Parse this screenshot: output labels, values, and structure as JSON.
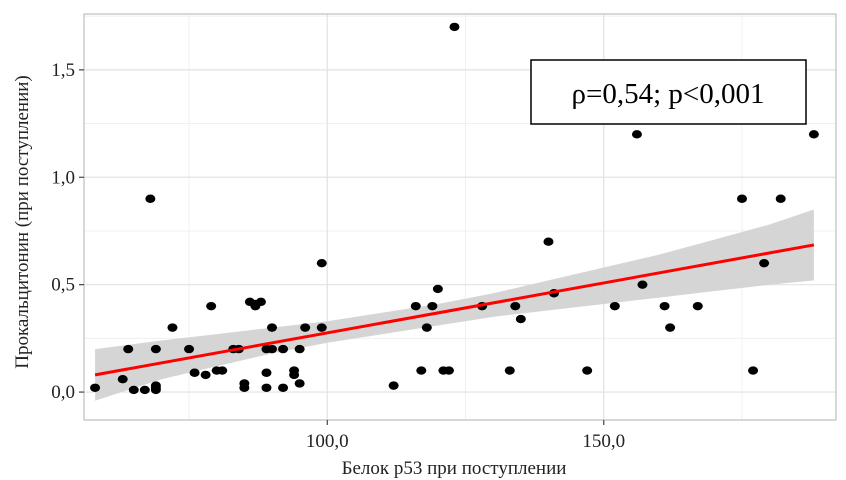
{
  "chart_data": {
    "type": "scatter",
    "xlabel": "Белок р53 при поступлении",
    "ylabel": "Прокальцитонин (при поступлении)",
    "xlim": [
      56,
      192
    ],
    "ylim": [
      -0.13,
      1.76
    ],
    "x_ticks": [
      {
        "value": 100,
        "label": "100,0"
      },
      {
        "value": 150,
        "label": "150,0"
      }
    ],
    "y_ticks": [
      {
        "value": 0.0,
        "label": "0,0"
      },
      {
        "value": 0.5,
        "label": "0,5"
      },
      {
        "value": 1.0,
        "label": "1,0"
      },
      {
        "value": 1.5,
        "label": "1,5"
      }
    ],
    "grid": true,
    "annotation": "ρ=0,54; p<0,001",
    "regression_line": {
      "x": [
        58,
        188
      ],
      "y": [
        0.08,
        0.685
      ],
      "color": "#ff0000"
    },
    "confidence_band": {
      "x": [
        58,
        70,
        80,
        90,
        100,
        110,
        120,
        130,
        140,
        150,
        160,
        170,
        180,
        188
      ],
      "lower": [
        -0.04,
        0.06,
        0.12,
        0.18,
        0.23,
        0.27,
        0.31,
        0.35,
        0.38,
        0.41,
        0.44,
        0.47,
        0.5,
        0.52
      ],
      "upper": [
        0.2,
        0.24,
        0.27,
        0.3,
        0.33,
        0.37,
        0.41,
        0.46,
        0.52,
        0.58,
        0.64,
        0.71,
        0.78,
        0.85
      ],
      "color": "#d3d3d3"
    },
    "points_color": "#000000",
    "series": [
      {
        "points": [
          [
            58,
            0.02
          ],
          [
            63,
            0.06
          ],
          [
            64,
            0.2
          ],
          [
            65,
            0.01
          ],
          [
            67,
            0.01
          ],
          [
            68,
            0.9
          ],
          [
            69,
            0.02
          ],
          [
            69,
            0.01
          ],
          [
            69,
            0.03
          ],
          [
            69,
            0.2
          ],
          [
            72,
            0.3
          ],
          [
            75,
            0.2
          ],
          [
            76,
            0.09
          ],
          [
            78,
            0.08
          ],
          [
            79,
            0.4
          ],
          [
            80,
            0.1
          ],
          [
            81,
            0.1
          ],
          [
            83,
            0.2
          ],
          [
            84,
            0.2
          ],
          [
            85,
            0.04
          ],
          [
            85,
            0.02
          ],
          [
            86,
            0.42
          ],
          [
            87,
            0.4
          ],
          [
            87,
            0.41
          ],
          [
            88,
            0.42
          ],
          [
            89,
            0.2
          ],
          [
            89,
            0.02
          ],
          [
            89,
            0.09
          ],
          [
            90,
            0.2
          ],
          [
            90,
            0.3
          ],
          [
            92,
            0.2
          ],
          [
            92,
            0.02
          ],
          [
            94,
            0.08
          ],
          [
            94,
            0.1
          ],
          [
            95,
            0.04
          ],
          [
            95,
            0.2
          ],
          [
            96,
            0.3
          ],
          [
            99,
            0.6
          ],
          [
            99,
            0.3
          ],
          [
            112,
            0.03
          ],
          [
            116,
            0.4
          ],
          [
            117,
            0.1
          ],
          [
            118,
            0.3
          ],
          [
            119,
            0.4
          ],
          [
            120,
            0.48
          ],
          [
            121,
            0.1
          ],
          [
            122,
            0.1
          ],
          [
            123,
            1.7
          ],
          [
            128,
            0.4
          ],
          [
            133,
            0.1
          ],
          [
            134,
            0.4
          ],
          [
            135,
            0.34
          ],
          [
            140,
            0.7
          ],
          [
            141,
            0.46
          ],
          [
            147,
            0.1
          ],
          [
            152,
            0.4
          ],
          [
            156,
            1.2
          ],
          [
            157,
            0.5
          ],
          [
            161,
            0.4
          ],
          [
            162,
            0.3
          ],
          [
            167,
            0.4
          ],
          [
            175,
            0.9
          ],
          [
            177,
            0.1
          ],
          [
            179,
            0.6
          ],
          [
            182,
            0.9
          ],
          [
            188,
            1.2
          ]
        ]
      }
    ]
  }
}
